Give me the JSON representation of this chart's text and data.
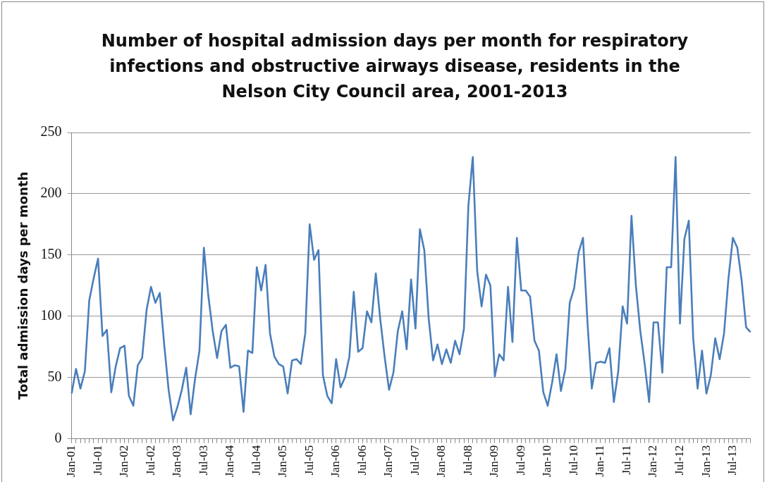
{
  "chart_data": {
    "type": "line",
    "title": "Number of hospital admission days per month for respiratory infections and obstructive airways disease, residents in the Nelson City Council area, 2001-2013",
    "ylabel": "Total admission days per month",
    "categories": [
      "Jan-01",
      null,
      null,
      null,
      null,
      null,
      "Jul-01",
      null,
      null,
      null,
      null,
      null,
      "Jan-02",
      null,
      null,
      null,
      null,
      null,
      "Jul-02",
      null,
      null,
      null,
      null,
      null,
      "Jan-03",
      null,
      null,
      null,
      null,
      null,
      "Jul-03",
      null,
      null,
      null,
      null,
      null,
      "Jan-04",
      null,
      null,
      null,
      null,
      null,
      "Jul-04",
      null,
      null,
      null,
      null,
      null,
      "Jan-05",
      null,
      null,
      null,
      null,
      null,
      "Jul-05",
      null,
      null,
      null,
      null,
      null,
      "Jan-06",
      null,
      null,
      null,
      null,
      null,
      "Jul-06",
      null,
      null,
      null,
      null,
      null,
      "Jan-07",
      null,
      null,
      null,
      null,
      null,
      "Jul-07",
      null,
      null,
      null,
      null,
      null,
      "Jan-08",
      null,
      null,
      null,
      null,
      null,
      "Jul-08",
      null,
      null,
      null,
      null,
      null,
      "Jan-09",
      null,
      null,
      null,
      null,
      null,
      "Jul-09",
      null,
      null,
      null,
      null,
      null,
      "Jan-10",
      null,
      null,
      null,
      null,
      null,
      "Jul-10",
      null,
      null,
      null,
      null,
      null,
      "Jan-11",
      null,
      null,
      null,
      null,
      null,
      "Jul-11",
      null,
      null,
      null,
      null,
      null,
      "Jan-12",
      null,
      null,
      null,
      null,
      null,
      "Jul-12",
      null,
      null,
      null,
      null,
      null,
      "Jan-13",
      null,
      null,
      null,
      null,
      null,
      "Jul-13",
      null,
      null,
      null,
      null
    ],
    "series": [
      {
        "color": "#4a7ebb",
        "values": [
          37,
          57,
          41,
          55,
          113,
          131,
          147,
          84,
          89,
          38,
          59,
          74,
          76,
          35,
          27,
          60,
          66,
          105,
          124,
          111,
          119,
          77,
          40,
          15,
          26,
          40,
          58,
          20,
          49,
          72,
          156,
          117,
          88,
          66,
          88,
          93,
          58,
          60,
          59,
          22,
          72,
          70,
          140,
          121,
          142,
          86,
          67,
          61,
          59,
          37,
          64,
          65,
          61,
          86,
          175,
          146,
          154,
          52,
          35,
          29,
          65,
          42,
          50,
          67,
          120,
          71,
          74,
          104,
          95,
          135,
          98,
          67,
          40,
          54,
          88,
          104,
          73,
          130,
          90,
          171,
          154,
          98,
          64,
          77,
          61,
          73,
          62,
          80,
          69,
          90,
          190,
          230,
          137,
          108,
          134,
          125,
          51,
          69,
          64,
          124,
          79,
          164,
          121,
          121,
          116,
          80,
          72,
          38,
          27,
          46,
          69,
          39,
          57,
          111,
          123,
          152,
          164,
          96,
          41,
          62,
          63,
          62,
          74,
          30,
          55,
          108,
          94,
          182,
          125,
          88,
          61,
          30,
          95,
          95,
          54,
          140,
          140,
          230,
          94,
          163,
          178,
          82,
          41,
          72,
          37,
          52,
          82,
          65,
          86,
          131,
          164,
          156,
          129,
          91,
          87
        ]
      }
    ],
    "ylim": [
      0,
      250
    ],
    "yticks": [
      0,
      50,
      100,
      150,
      200,
      250
    ],
    "grid": "y",
    "legend": false,
    "marker": "none"
  }
}
